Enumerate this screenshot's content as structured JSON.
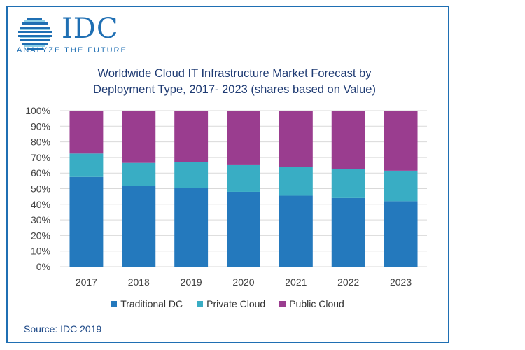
{
  "brand": {
    "name": "IDC",
    "tagline": "ANALYZE THE FUTURE",
    "color": "#1f6fb3"
  },
  "chart_data": {
    "type": "bar",
    "stacked": true,
    "title_line1": "Worldwide Cloud IT Infrastructure Market Forecast by",
    "title_line2": "Deployment Type, 2017- 2023 (shares based on Value)",
    "categories": [
      "2017",
      "2018",
      "2019",
      "2020",
      "2021",
      "2022",
      "2023"
    ],
    "series": [
      {
        "name": "Traditional DC",
        "color": "#2479bd",
        "values": [
          57.5,
          52,
          50.5,
          48,
          45.5,
          44,
          42
        ]
      },
      {
        "name": "Private Cloud",
        "color": "#39adc4",
        "values": [
          15,
          14.5,
          16.5,
          17.5,
          18.5,
          18.5,
          19.5
        ]
      },
      {
        "name": "Public Cloud",
        "color": "#9a3d8f",
        "values": [
          27.5,
          33.5,
          33,
          34.5,
          36,
          37.5,
          38.5
        ]
      }
    ],
    "ylim": [
      0,
      100
    ],
    "yticks": [
      "0%",
      "10%",
      "20%",
      "30%",
      "40%",
      "50%",
      "60%",
      "70%",
      "80%",
      "90%",
      "100%"
    ],
    "grid": true,
    "legend_position": "bottom"
  },
  "source": "Source: IDC 2019"
}
